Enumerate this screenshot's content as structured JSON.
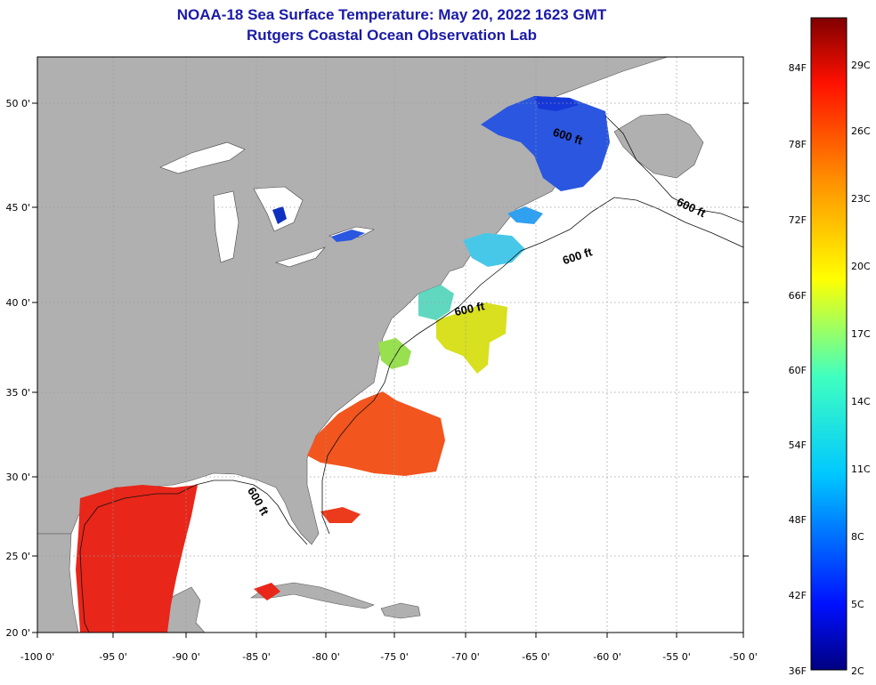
{
  "title_line1": "NOAA-18 Sea Surface Temperature:  May 20, 2022 1623 GMT",
  "title_line2": "Rutgers Coastal Ocean Observation Lab",
  "map": {
    "lon_ticks": [
      "-100 0'",
      "-95 0'",
      "-90 0'",
      "-85 0'",
      "-80 0'",
      "-75 0'",
      "-70 0'",
      "-65 0'",
      "-60 0'",
      "-55 0'",
      "-50 0'"
    ],
    "lat_ticks": [
      "50 0'",
      "45 0'",
      "40 0'",
      "35 0'",
      "30 0'",
      "25 0'",
      "20 0'"
    ],
    "isobath_labels": [
      "600 ft",
      "600 ft",
      "600 ft",
      "600 ft",
      "600 ft"
    ],
    "colors": {
      "land": "#b0b0b0",
      "ocean_nodata": "#ffffff",
      "grid": "#9a9a9a"
    }
  },
  "colorbar": {
    "fahrenheit": [
      "84F",
      "78F",
      "72F",
      "66F",
      "60F",
      "54F",
      "48F",
      "42F",
      "36F"
    ],
    "celsius": [
      "29C",
      "26C",
      "23C",
      "20C",
      "17C",
      "14C",
      "11C",
      "8C",
      "5C",
      "2C"
    ]
  }
}
